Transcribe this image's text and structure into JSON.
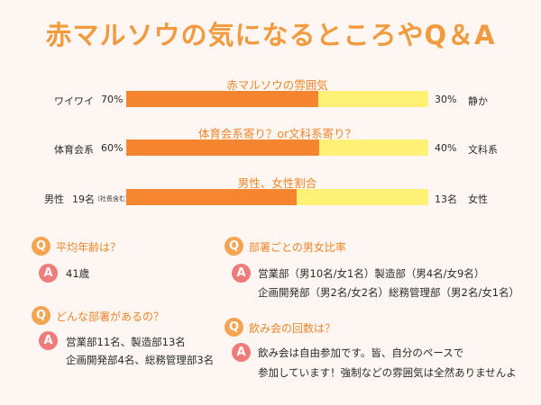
{
  "title": "赤マルソウの気になるところやQ＆A",
  "bars": [
    {
      "label": "赤マルソウの雰囲気",
      "left_label": "ワイワイ",
      "left_value": "70%",
      "right_value": "30%",
      "right_label": "静か",
      "fill": 0.635
    },
    {
      "label": "体育会系寄り？or文科系寄り？",
      "left_label": "体育会系",
      "left_value": "60%",
      "right_value": "40%",
      "right_label": "文科系",
      "fill": 0.64
    },
    {
      "label": "男性、女性割合",
      "left_label": "男性",
      "left_value": "19名",
      "left_note": "（社長含む）",
      "right_value": "13名",
      "right_label": "女性",
      "fill": 0.565
    }
  ],
  "qa": [
    {
      "q": "平均年齢は？",
      "a": [
        "41歳"
      ]
    },
    {
      "q": "どんな部署があるの？",
      "a": [
        "営業部11名、製造部13名",
        "企画開発部4名、総務管理部3名"
      ]
    },
    {
      "q": "部署ごとの男女比率",
      "a": [
        "営業部（男10名/女1名）製造部（男4名/女9名）",
        "企画開発部（男2名/女2名）総務管理部（男2名/女1名）"
      ]
    },
    {
      "q": "飲み会の回数は？",
      "a": [
        "飲み会は自由参加です。皆、自分のペースで",
        "参加しています！強制などの雰囲気は全然ありませんよ"
      ]
    }
  ],
  "icons": {
    "q": "Q",
    "a": "A"
  },
  "colors": {
    "title": "#f19a3e",
    "bar_fill": "#f5862f",
    "bar_track": "#fff176",
    "q_badge": "#f5a452",
    "a_badge": "#ef7b7b"
  }
}
